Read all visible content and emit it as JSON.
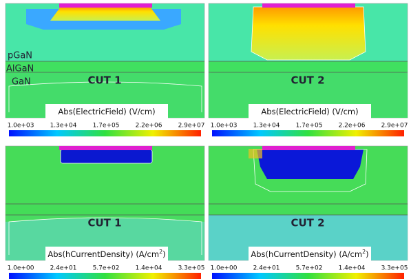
{
  "layers": [
    "pGaN",
    "AlGaN",
    "GaN"
  ],
  "panels": [
    {
      "cut": "CUT 1",
      "title": "Abs(ElectricField)  (V/cm)",
      "ticks": [
        "1.0e+03",
        "1.3e+04",
        "1.7e+05",
        "2.2e+06",
        "2.9e+07"
      ]
    },
    {
      "cut": "CUT 2",
      "title": "Abs(ElectricField)  (V/cm)",
      "ticks": [
        "1.0e+03",
        "1.3e+04",
        "1.7e+05",
        "2.2e+06",
        "2.9e+07"
      ]
    },
    {
      "cut": "CUT 1",
      "title": "Abs(hCurrentDensity)  (A/cm",
      "title_sup": "2",
      "title_end": ")",
      "ticks": [
        "1.0e+00",
        "2.4e+01",
        "5.7e+02",
        "1.4e+04",
        "3.3e+05"
      ]
    },
    {
      "cut": "CUT 2",
      "title": "Abs(hCurrentDensity)  (A/cm",
      "title_sup": "2",
      "title_end": ")",
      "ticks": [
        "1.0e+00",
        "2.4e+01",
        "5.7e+02",
        "1.4e+04",
        "3.3e+05"
      ]
    }
  ]
}
